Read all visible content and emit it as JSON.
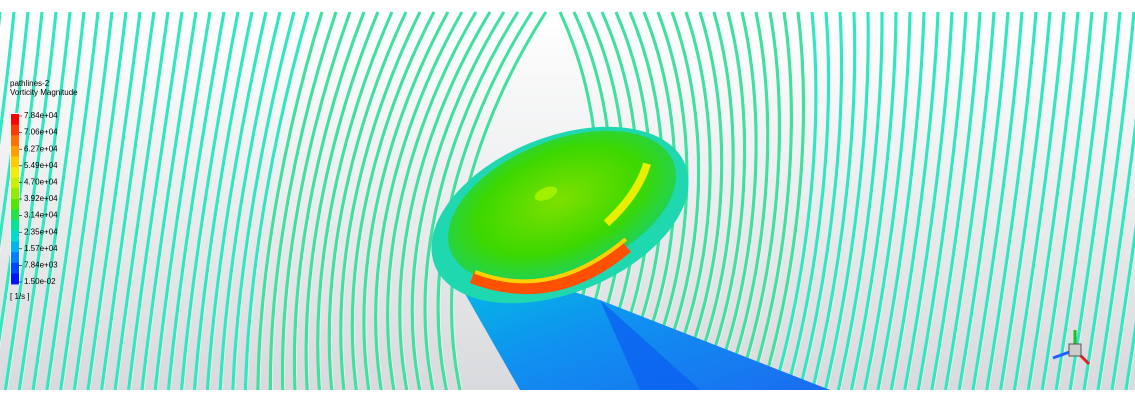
{
  "legend": {
    "title": "pathlines-2",
    "quantity": "Vorticity Magnitude",
    "levels": [
      "7.84e+04",
      "7.06e+04",
      "6.27e+04",
      "5.49e+04",
      "4.70e+04",
      "3.92e+04",
      "3.14e+04",
      "2.35e+04",
      "1.57e+04",
      "7.84e+03",
      "1.50e-02"
    ],
    "unit": "[ 1/s ]",
    "colors": [
      "#ff0000",
      "#ff3a00",
      "#ff7000",
      "#ffa000",
      "#ffcc00",
      "#f2f000",
      "#c8f000",
      "#90ee00",
      "#50e800",
      "#1ee64a",
      "#00e896",
      "#00dcd2",
      "#00b4f0",
      "#0080ff",
      "#0048ff",
      "#0014ff"
    ]
  }
}
